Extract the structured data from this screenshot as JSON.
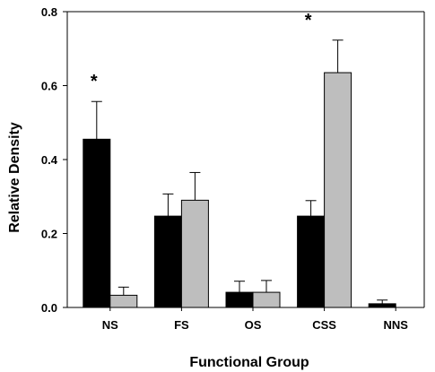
{
  "chart_data": {
    "type": "bar",
    "xlabel": "Functional Group",
    "ylabel": "Relative Density",
    "categories": [
      "NS",
      "FS",
      "OS",
      "CSS",
      "NNS"
    ],
    "ylim": [
      0,
      0.8
    ],
    "yticks": [
      "0.0",
      "0.2",
      "0.4",
      "0.6",
      "0.8"
    ],
    "grid": false,
    "series": [
      {
        "color": "#000000",
        "values": [
          0.455,
          0.247,
          0.041,
          0.247,
          0.01
        ],
        "errors": [
          0.102,
          0.06,
          0.03,
          0.042,
          0.01
        ]
      },
      {
        "color": "#bebebe",
        "values": [
          0.033,
          0.29,
          0.041,
          0.635,
          0.0
        ],
        "errors": [
          0.022,
          0.075,
          0.032,
          0.088,
          0.0
        ]
      }
    ],
    "annotations": [
      {
        "category": "NS",
        "text": "*"
      },
      {
        "category": "CSS",
        "text": "*"
      }
    ]
  }
}
